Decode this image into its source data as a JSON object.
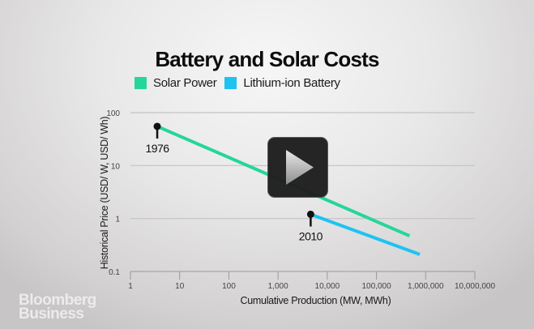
{
  "chart_data": {
    "type": "line",
    "title": "Battery and Solar Costs",
    "xlabel": "Cumulative Production (MW, MWh)",
    "ylabel": "Historical Price (USD/ W, USD/ Wh)",
    "xscale": "log",
    "yscale": "log",
    "xlim": [
      1,
      10000000
    ],
    "ylim": [
      0.1,
      100
    ],
    "x_ticks": [
      1,
      10,
      100,
      1000,
      10000,
      100000,
      1000000,
      10000000
    ],
    "x_tick_labels": [
      "1",
      "10",
      "100",
      "1,000",
      "10,000",
      "100,000",
      "1,000,000",
      "10,000,000"
    ],
    "y_ticks": [
      100,
      10,
      1,
      0.1
    ],
    "y_tick_labels": [
      "100",
      "10",
      "1",
      "0.1"
    ],
    "grid": "horizontal",
    "legend_position": "top-left",
    "series": [
      {
        "name": "Solar Power",
        "color": "#25d69a",
        "x": [
          3.5,
          470000
        ],
        "y": [
          55,
          0.47
        ]
      },
      {
        "name": "Lithium-ion Battery",
        "color": "#1ec3f0",
        "x": [
          4600,
          760000
        ],
        "y": [
          1.2,
          0.21
        ]
      }
    ],
    "annotations": [
      {
        "text": "1976",
        "x": 3.5,
        "y": 55
      },
      {
        "text": "2010",
        "x": 4600,
        "y": 1.2
      }
    ]
  },
  "overlay": {
    "play_button": "play-icon",
    "brand_line1": "Bloomberg",
    "brand_line2": "Business"
  }
}
